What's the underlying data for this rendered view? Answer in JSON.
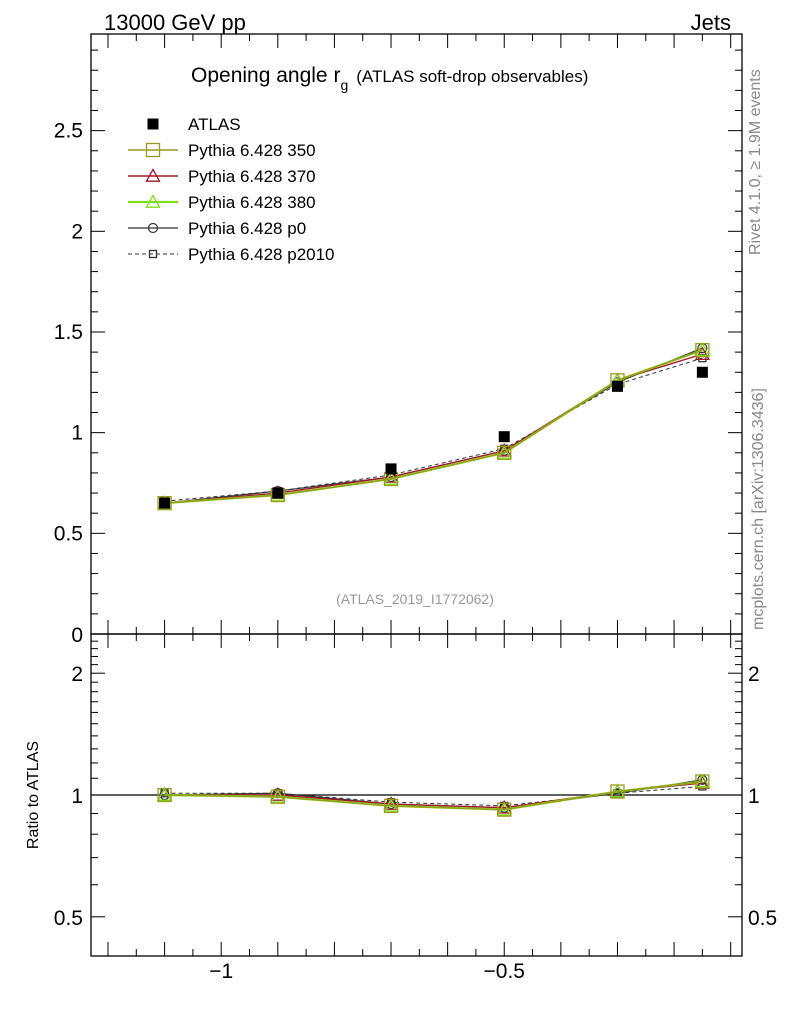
{
  "header": {
    "left": "13000 GeV pp",
    "right": "Jets"
  },
  "title": {
    "main": "Opening angle r",
    "sub": "g",
    "paren": "(ATLAS soft-drop observables)"
  },
  "side_labels": {
    "rivet": "Rivet 4.1.0, ≥ 1.9M events",
    "mcplots": "mcplots.cern.ch [arXiv:1306.3436]"
  },
  "watermark": "(ATLAS_2019_I1772062)",
  "ratio_ylabel": "Ratio to ATLAS",
  "colors": {
    "atlas": "#000000",
    "p350": "#9a9a1e",
    "p370": "#a01a2a",
    "p380": "#7fe01a",
    "p0": "#333333",
    "p2010": "#333333"
  },
  "chart_data": [
    {
      "type": "line",
      "panel": "main",
      "x": [
        -1.1,
        -0.9,
        -0.7,
        -0.5,
        -0.3,
        -0.15
      ],
      "xlim": [
        -1.23,
        -0.08
      ],
      "ylim": [
        0,
        2.98
      ],
      "yticks": [
        "0.5",
        "1",
        "1.5",
        "2",
        "2.5"
      ],
      "ytick_values": [
        0.5,
        1,
        1.5,
        2,
        2.5
      ],
      "ytick_zero_label": "0",
      "legend_placement": "top-left",
      "series": [
        {
          "key": "atlas",
          "name": "ATLAS",
          "values": [
            0.65,
            0.7,
            0.82,
            0.98,
            1.23,
            1.3
          ]
        },
        {
          "key": "p350",
          "name": "Pythia 6.428 350",
          "values": [
            0.65,
            0.69,
            0.77,
            0.9,
            1.26,
            1.41
          ]
        },
        {
          "key": "p370",
          "name": "Pythia 6.428 370",
          "values": [
            0.65,
            0.7,
            0.78,
            0.91,
            1.26,
            1.39
          ]
        },
        {
          "key": "p380",
          "name": "Pythia 6.428 380",
          "values": [
            0.65,
            0.69,
            0.77,
            0.9,
            1.26,
            1.41
          ]
        },
        {
          "key": "p0",
          "name": "Pythia 6.428 p0",
          "values": [
            0.65,
            0.71,
            0.78,
            0.91,
            1.25,
            1.42
          ]
        },
        {
          "key": "p2010",
          "name": "Pythia 6.428 p2010",
          "values": [
            0.66,
            0.71,
            0.79,
            0.92,
            1.24,
            1.37
          ]
        }
      ]
    },
    {
      "type": "line",
      "panel": "ratio",
      "x": [
        -1.1,
        -0.9,
        -0.7,
        -0.5,
        -0.3,
        -0.15
      ],
      "xlim": [
        -1.23,
        -0.08
      ],
      "xticks": [
        "−1",
        "−0.5"
      ],
      "xtick_values": [
        -1,
        -0.5
      ],
      "yscale": "log",
      "ylim": [
        0.4,
        2.5
      ],
      "yticks": [
        "0.5",
        "1",
        "2"
      ],
      "ytick_values": [
        0.5,
        1,
        2
      ],
      "reference_line": 1,
      "series": [
        {
          "key": "p350",
          "values": [
            1.0,
            0.99,
            0.94,
            0.92,
            1.02,
            1.08
          ]
        },
        {
          "key": "p370",
          "values": [
            1.0,
            1.0,
            0.95,
            0.93,
            1.02,
            1.07
          ]
        },
        {
          "key": "p380",
          "values": [
            1.0,
            0.99,
            0.94,
            0.92,
            1.02,
            1.08
          ]
        },
        {
          "key": "p0",
          "values": [
            1.0,
            1.01,
            0.95,
            0.93,
            1.01,
            1.09
          ]
        },
        {
          "key": "p2010",
          "values": [
            1.01,
            1.01,
            0.96,
            0.94,
            1.01,
            1.05
          ]
        }
      ]
    }
  ]
}
